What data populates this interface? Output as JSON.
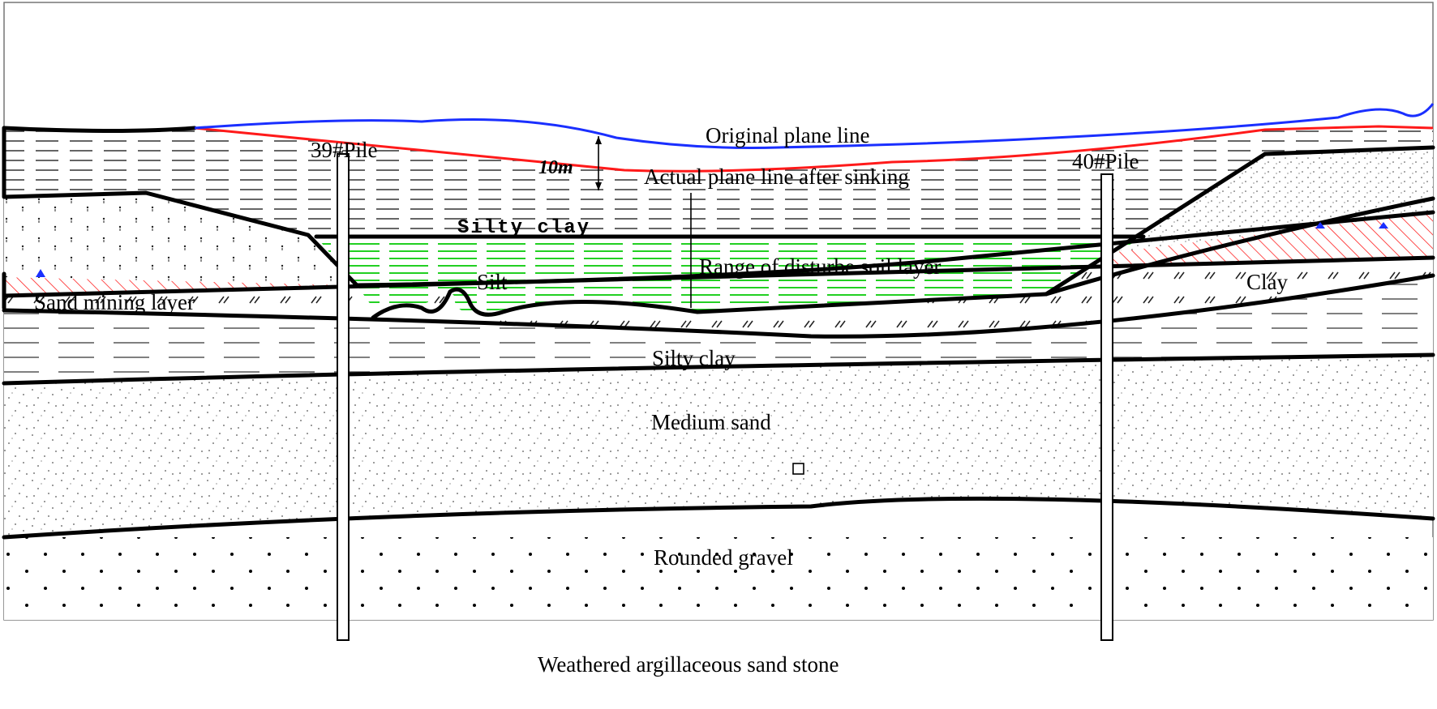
{
  "diagram": {
    "labels": {
      "original_plane_line": "Original plane line",
      "actual_plane_line": "Actual plane line after sinking",
      "pile_39": "39#Pile",
      "pile_40": "40#Pile",
      "dimension": "10m",
      "silty_clay_top": "Silty clay",
      "silt": "Silt",
      "disturbed_range": "Range of disturbe soil layer",
      "sand_mining_layer": "Sand mining layer",
      "clay": "Clay",
      "silty_clay": "Silty clay",
      "medium_sand": "Medium sand",
      "rounded_gravel": "Rounded gravel",
      "weathered_stone": "Weathered argillaceous sand stone"
    },
    "colors": {
      "original_line": "#1a2fff",
      "actual_line": "#ff1a1a",
      "silt_hatch": "#22d022",
      "clay_hatch": "#ff2020",
      "boundary": "#000000"
    }
  }
}
